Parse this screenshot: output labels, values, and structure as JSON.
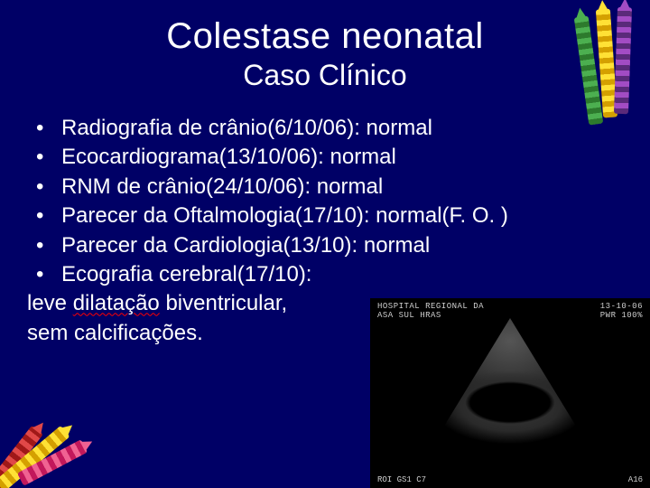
{
  "title": "Colestase neonatal",
  "subtitle": "Caso Clínico",
  "bullets": [
    "Radiografia de crânio(6/10/06): normal",
    "Ecocardiograma(13/10/06): normal",
    "RNM de crânio(24/10/06): normal",
    "Parecer da Oftalmologia(17/10): normal(F. O. )",
    "Parecer da Cardiologia(13/10): normal",
    "Ecografia cerebral(17/10):"
  ],
  "continuation": {
    "line1_pre": "leve ",
    "line1_spell": "dilatação",
    "line1_post": " biventricular,",
    "line2": "sem calcificações."
  },
  "ultrasound": {
    "header_left": "HOSPITAL REGIONAL DA",
    "header_right": "13-10-06",
    "header_left2": "ASA SUL HRAS",
    "footer_left": "ROI GS1 C7",
    "footer_right": "A16",
    "footer_pwr": "PWR 100%"
  },
  "colors": {
    "background": "#000066",
    "text": "#ffffff",
    "spell_underline": "#ff0000"
  },
  "decorations": {
    "crayons_top_right": [
      "green",
      "yellow",
      "purple"
    ],
    "crayons_bottom_left": [
      "yellow",
      "red",
      "pink"
    ]
  }
}
